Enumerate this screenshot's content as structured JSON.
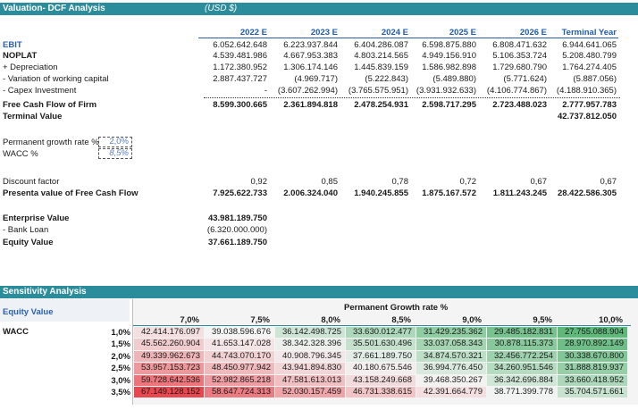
{
  "dcf": {
    "title": "Valuation- DCF Analysis",
    "currency": "(USD $)",
    "years": [
      "2022 E",
      "2023 E",
      "2024 E",
      "2025 E",
      "2026 E",
      "Terminal Year"
    ],
    "rows": [
      {
        "label": "EBIT",
        "values": [
          "6.052.642.648",
          "6.223.937.844",
          "6.404.286.087",
          "6.598.875.880",
          "6.808.471.632",
          "6.944.641.065"
        ]
      },
      {
        "label": "NOPLAT",
        "values": [
          "4.539.481.986",
          "4.667.953.383",
          "4.803.214.565",
          "4.949.156.910",
          "5.106.353.724",
          "5.208.480.799"
        ]
      },
      {
        "label": " + Depreciation",
        "values": [
          "1.172.380.952",
          "1.306.174.146",
          "1.445.839.159",
          "1.586.982.898",
          "1.729.680.790",
          "1.764.274.405"
        ]
      },
      {
        "label": " - Variation of working capital",
        "values": [
          "2.887.437.727",
          "(4.969.717)",
          "(5.222.843)",
          "(5.489.880)",
          "(5.771.624)",
          "(5.887.056)"
        ]
      },
      {
        "label": " - Capex Investment",
        "values": [
          "-",
          "(3.607.262.994)",
          "(3.765.575.951)",
          "(3.931.932.633)",
          "(4.106.774.867)",
          "(4.188.910.365)"
        ]
      },
      {
        "label": "Free Cash Flow of Firm",
        "values": [
          "8.599.300.665",
          "2.361.894.818",
          "2.478.254.931",
          "2.598.717.295",
          "2.723.488.023",
          "2.777.957.783"
        ]
      }
    ],
    "terminal_value_label": "Terminal Value",
    "terminal_value": "42.737.812.050",
    "growth_label": "Permanent growth rate %",
    "growth_value": "2,0%",
    "wacc_label": "WACC %",
    "wacc_value": "8,5%",
    "discount_label": "Discount factor",
    "discount_values": [
      "0,92",
      "0,85",
      "0,78",
      "0,72",
      "0,67",
      "0,67"
    ],
    "pv_label": "Presenta value of Free Cash Flow",
    "pv_values": [
      "7.925.622.733",
      "2.006.324.040",
      "1.940.245.855",
      "1.875.167.572",
      "1.811.243.245",
      "28.422.586.305"
    ],
    "ev_label": "Enterprise Value",
    "ev_value": "43.981.189.750",
    "loan_label": " - Bank Loan",
    "loan_value": "(6.320.000.000)",
    "equity_label": "Equity Value",
    "equity_value": "37.661.189.750"
  },
  "sensitivity": {
    "title": "Sensitivity Analysis",
    "corner_label": "Equity Value",
    "axis_label": "Permanent Growth rate %",
    "row_axis_label": "WACC",
    "growth_rates": [
      "7,0%",
      "7,5%",
      "8,0%",
      "8,5%",
      "9,0%",
      "9,5%",
      "10,0%"
    ],
    "wacc_rates": [
      "1,0%",
      "1,5%",
      "2,0%",
      "2,5%",
      "3,0%",
      "3,5%"
    ],
    "grid": [
      [
        "42.414.176.097",
        "39.038.596.676",
        "36.142.498.725",
        "33.630.012.477",
        "31.429.235.362",
        "29.485.182.831",
        "27.755.088.904"
      ],
      [
        "45.562.260.904",
        "41.653.147.028",
        "38.342.328.396",
        "35.501.630.496",
        "33.037.058.343",
        "30.878.115.373",
        "28.970.892.149"
      ],
      [
        "49.339.962.673",
        "44.743.070.170",
        "40.908.796.345",
        "37.661.189.750",
        "34.874.570.321",
        "32.456.772.254",
        "30.338.670.800"
      ],
      [
        "53.957.153.723",
        "48.450.977.942",
        "43.941.894.830",
        "40.180.675.546",
        "36.994.776.450",
        "34.260.951.546",
        "31.888.819.937"
      ],
      [
        "59.728.642.536",
        "52.982.865.218",
        "47.581.613.013",
        "43.158.249.668",
        "39.468.350.267",
        "36.342.696.884",
        "33.660.418.952"
      ],
      [
        "67.149.128.152",
        "58.647.724.313",
        "52.030.157.459",
        "46.731.338.615",
        "42.391.664.779",
        "38.771.399.778",
        "35.704.571.661"
      ]
    ],
    "colors": {
      "low": "#5fb87a",
      "mid": "#f4f4f4",
      "high": "#e8474f"
    }
  }
}
